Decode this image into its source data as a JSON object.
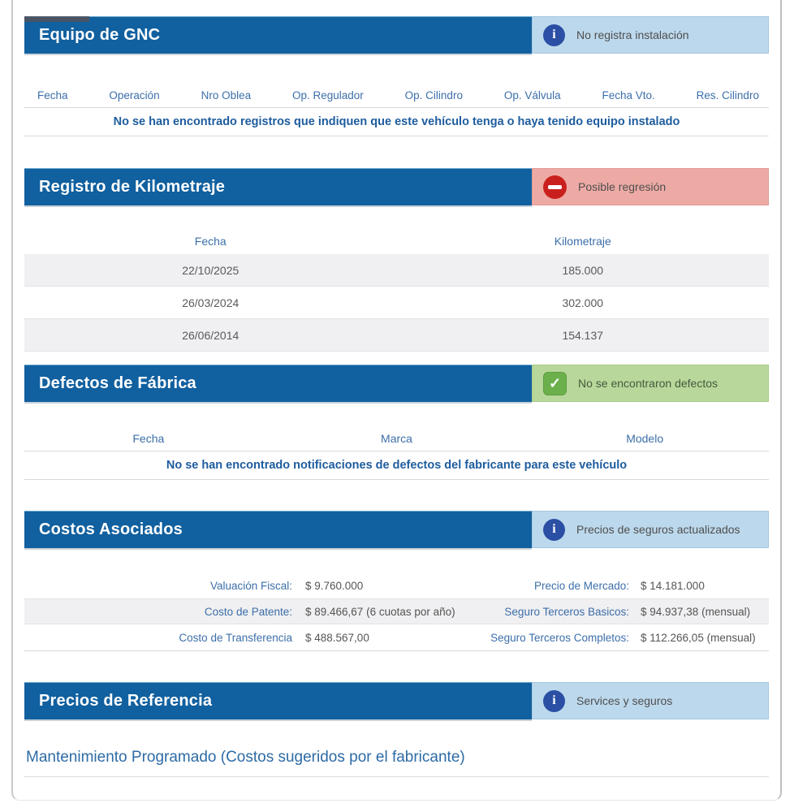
{
  "colors": {
    "header_bar": "#11609f",
    "badge_info_bg": "#bcd8ec",
    "badge_error_bg": "#edaaa4",
    "badge_success_bg": "#b7d89a",
    "info_icon": "#2a4fa4",
    "error_icon": "#ca201d",
    "success_icon": "#6cb04c"
  },
  "icons": {
    "info_glyph": "i",
    "check_glyph": "✓"
  },
  "gnc": {
    "title": "Equipo de GNC",
    "badge": {
      "text": "No registra instalación"
    },
    "columns": [
      "Fecha",
      "Operación",
      "Nro Oblea",
      "Op. Regulador",
      "Op. Cilindro",
      "Op. Válvula",
      "Fecha Vto.",
      "Res. Cilindro"
    ],
    "empty_message": "No se han encontrado registros que indiquen que este vehículo tenga o haya tenido equipo instalado"
  },
  "kilometraje": {
    "title": "Registro de Kilometraje",
    "badge": {
      "text": "Posible regresión"
    },
    "columns": [
      "Fecha",
      "Kilometraje"
    ],
    "rows": [
      {
        "fecha": "22/10/2025",
        "km": "185.000"
      },
      {
        "fecha": "26/03/2024",
        "km": "302.000"
      },
      {
        "fecha": "26/06/2014",
        "km": "154.137"
      }
    ]
  },
  "defectos": {
    "title": "Defectos de Fábrica",
    "badge": {
      "text": "No se encontraron defectos"
    },
    "columns": [
      "Fecha",
      "Marca",
      "Modelo"
    ],
    "empty_message": "No se han encontrado notificaciones de defectos del fabricante para este vehículo"
  },
  "costos": {
    "title": "Costos Asociados",
    "badge": {
      "text": "Precios de seguros actualizados"
    },
    "rows": [
      {
        "label_left": "Valuación Fiscal:",
        "value_left": "$ 9.760.000",
        "label_right": "Precio de Mercado:",
        "value_right": "$ 14.181.000"
      },
      {
        "label_left": "Costo de Patente:",
        "value_left": "$ 89.466,67 (6 cuotas por año)",
        "label_right": "Seguro Terceros Basicos:",
        "value_right": "$ 94.937,38 (mensual)"
      },
      {
        "label_left": "Costo de Transferencia",
        "value_left": "$ 488.567,00",
        "label_right": "Seguro Terceros Completos:",
        "value_right": "$ 112.266,05 (mensual)"
      }
    ]
  },
  "referencia": {
    "title": "Precios de Referencia",
    "badge": {
      "text": "Services y seguros"
    },
    "subtitle": "Mantenimiento Programado (Costos sugeridos por el fabricante)"
  }
}
